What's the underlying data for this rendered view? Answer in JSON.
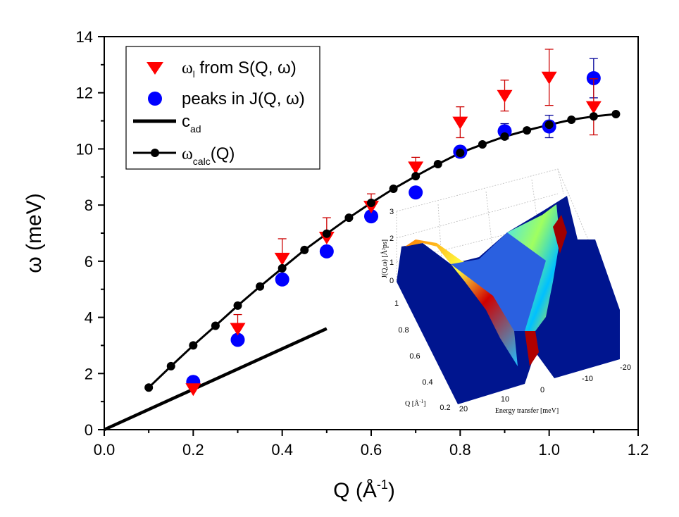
{
  "chart_data": {
    "type": "scatter",
    "xlabel": "Q (Å",
    "xlabel_sup": "-1",
    "xlabel_end": ")",
    "ylabel": "ω (meV)",
    "xlim": [
      0,
      1.2
    ],
    "ylim": [
      0,
      14
    ],
    "x_ticks": [
      "0.0",
      "0.2",
      "0.4",
      "0.6",
      "0.8",
      "1.0",
      "1.2"
    ],
    "y_ticks": [
      "0",
      "2",
      "4",
      "6",
      "8",
      "10",
      "12",
      "14"
    ],
    "grid": false,
    "legend_position": "top-left",
    "colors": {
      "omega_l": "#ff0000",
      "errbar_red": "#cc0000",
      "peaks": "#0000ff",
      "errbar_blue": "#000099",
      "line": "#000000"
    },
    "series": [
      {
        "name": "ω_l from S(Q,ω)",
        "legend": {
          "main": "ω",
          "sub": "l",
          "rest": " from S(Q, ω)"
        },
        "marker": "triangle-down",
        "x": [
          0.2,
          0.3,
          0.4,
          0.5,
          0.6,
          0.7,
          0.8,
          0.9,
          1.0,
          1.1
        ],
        "y": [
          1.45,
          3.6,
          6.1,
          6.85,
          7.95,
          9.35,
          10.95,
          11.9,
          12.55,
          11.5
        ],
        "err_up": [
          0,
          0.5,
          0.7,
          0.7,
          0.45,
          0.35,
          0.55,
          0.55,
          1.0,
          1.0
        ],
        "err_down": [
          0,
          0,
          0,
          0,
          0,
          0,
          0.55,
          0.55,
          1.0,
          1.0
        ]
      },
      {
        "name": "peaks in J(Q,ω)",
        "legend": {
          "main": "peaks in J(Q, ω)",
          "sub": "",
          "rest": ""
        },
        "marker": "circle",
        "x": [
          0.2,
          0.3,
          0.4,
          0.5,
          0.6,
          0.7,
          0.8,
          0.9,
          1.0,
          1.1
        ],
        "y": [
          1.7,
          3.2,
          5.35,
          6.35,
          7.6,
          8.45,
          9.9,
          10.63,
          10.8,
          12.52
        ],
        "err": [
          0.1,
          0.15,
          0.1,
          0.1,
          0.1,
          0.1,
          0.2,
          0.27,
          0.4,
          0.7
        ]
      },
      {
        "name": "c_ad",
        "legend": {
          "main": "c",
          "sub": "ad",
          "rest": ""
        },
        "marker": "none",
        "x": [
          0.0,
          0.5
        ],
        "y": [
          0.0,
          3.6
        ]
      },
      {
        "name": "ω_calc(Q)",
        "legend": {
          "main": "ω",
          "sub": "calc",
          "rest": "(Q)"
        },
        "marker": "circle-line",
        "x": [
          0.1,
          0.15,
          0.2,
          0.25,
          0.3,
          0.35,
          0.4,
          0.45,
          0.5,
          0.55,
          0.6,
          0.65,
          0.7,
          0.75,
          0.8,
          0.85,
          0.9,
          0.95,
          1.0,
          1.05,
          1.1,
          1.15
        ],
        "y": [
          1.5,
          2.26,
          3.0,
          3.7,
          4.42,
          5.1,
          5.75,
          6.4,
          6.98,
          7.55,
          8.08,
          8.58,
          9.03,
          9.46,
          9.86,
          10.16,
          10.44,
          10.66,
          10.86,
          11.04,
          11.16,
          11.24
        ]
      }
    ],
    "inset": {
      "type": "surface-3d",
      "zlabel": "J(Q,ω) [Å²ps]",
      "ylabel": "Q [Å",
      "ylabel_sup": "-1",
      "ylabel_end": "]",
      "xlabel": "Energy transfer [meV]",
      "z_ticks": [
        "3",
        "2",
        "1",
        "0"
      ],
      "q_ticks": [
        "1",
        "0.8",
        "0.6",
        "0.4",
        "0.2"
      ],
      "e_ticks": [
        "20",
        "10",
        "0",
        "-10",
        "-20"
      ]
    }
  }
}
